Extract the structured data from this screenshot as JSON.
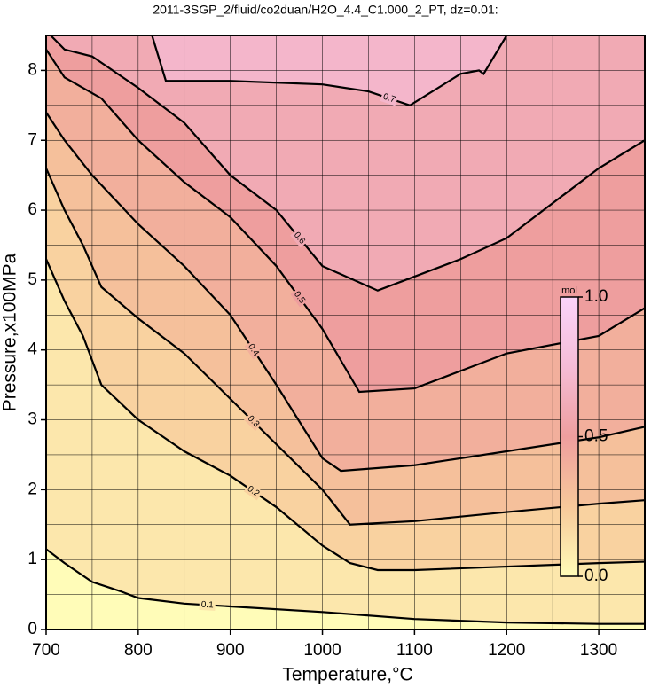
{
  "chart_data": {
    "type": "contour",
    "title": "2011-3SGP_2/fluid/co2duan/H2O_4.4_C1.000_2_PT, dz=0.01:",
    "x_label": "Temperature,°C",
    "y_label": "Pressure,x100MPa",
    "xlim": [
      700,
      1350
    ],
    "ylim": [
      0,
      8.5
    ],
    "xticks": [
      700,
      800,
      900,
      1000,
      1100,
      1200,
      1300
    ],
    "yticks": [
      0,
      1,
      2,
      3,
      4,
      5,
      6,
      7,
      8
    ],
    "x_minor_grid": [
      750,
      850,
      950,
      1050,
      1150,
      1250
    ],
    "y_minor_grid": [
      0.5,
      1.5,
      2.5,
      3.5,
      4.5,
      5.5,
      6.5,
      7.5
    ],
    "grid": true,
    "line_color": "#000000",
    "contours": [
      {
        "level": 0.1,
        "x": [
          700,
          720,
          750,
          780,
          800,
          850,
          900,
          1000,
          1100,
          1200,
          1300,
          1350
        ],
        "y": [
          1.15,
          0.95,
          0.68,
          0.55,
          0.45,
          0.37,
          0.33,
          0.25,
          0.15,
          0.1,
          0.08,
          0.08
        ]
      },
      {
        "level": 0.2,
        "x": [
          700,
          720,
          740,
          760,
          800,
          850,
          900,
          950,
          1000,
          1030,
          1060,
          1100,
          1200,
          1300,
          1350
        ],
        "y": [
          5.3,
          4.7,
          4.2,
          3.5,
          3.0,
          2.55,
          2.2,
          1.75,
          1.2,
          0.95,
          0.85,
          0.85,
          0.9,
          0.95,
          0.97
        ]
      },
      {
        "level": 0.3,
        "x": [
          700,
          720,
          740,
          760,
          800,
          850,
          900,
          950,
          1000,
          1030,
          1100,
          1200,
          1300,
          1350
        ],
        "y": [
          6.6,
          6.0,
          5.5,
          4.9,
          4.45,
          3.95,
          3.3,
          2.65,
          2.0,
          1.5,
          1.55,
          1.68,
          1.8,
          1.85
        ]
      },
      {
        "level": 0.4,
        "x": [
          700,
          720,
          750,
          800,
          850,
          900,
          950,
          1000,
          1020,
          1100,
          1200,
          1300,
          1350
        ],
        "y": [
          7.4,
          7.0,
          6.5,
          5.8,
          5.2,
          4.5,
          3.5,
          2.45,
          2.27,
          2.35,
          2.55,
          2.75,
          2.9
        ]
      },
      {
        "level": 0.5,
        "x": [
          700,
          720,
          760,
          800,
          850,
          900,
          950,
          1000,
          1040,
          1100,
          1150,
          1200,
          1300,
          1350
        ],
        "y": [
          8.3,
          7.9,
          7.6,
          7.0,
          6.4,
          5.9,
          5.2,
          4.3,
          3.4,
          3.45,
          3.7,
          3.95,
          4.2,
          4.6
        ]
      },
      {
        "level": 0.6,
        "x": [
          705,
          720,
          750,
          800,
          850,
          900,
          950,
          1000,
          1060,
          1100,
          1150,
          1200,
          1300,
          1350
        ],
        "y": [
          8.5,
          8.3,
          8.2,
          7.75,
          7.25,
          6.5,
          6.0,
          5.2,
          4.85,
          5.05,
          5.3,
          5.6,
          6.6,
          7.0
        ]
      },
      {
        "level": 0.7,
        "x": [
          815,
          830,
          900,
          1000,
          1050,
          1095,
          1150,
          1170,
          1175,
          1200
        ],
        "y": [
          8.5,
          7.85,
          7.85,
          7.8,
          7.7,
          7.5,
          7.95,
          8.0,
          7.95,
          8.5
        ]
      }
    ],
    "colorbar": {
      "label": "mol",
      "colors": [
        "#fffcb8",
        "#f7c89a",
        "#ee9e9e",
        "#f5bcd6",
        "#fad4fa"
      ],
      "ticks": [
        {
          "value": 0,
          "label": "0.0"
        },
        {
          "value": 0.5,
          "label": "0.5"
        },
        {
          "value": 1,
          "label": "1.0"
        }
      ]
    }
  }
}
